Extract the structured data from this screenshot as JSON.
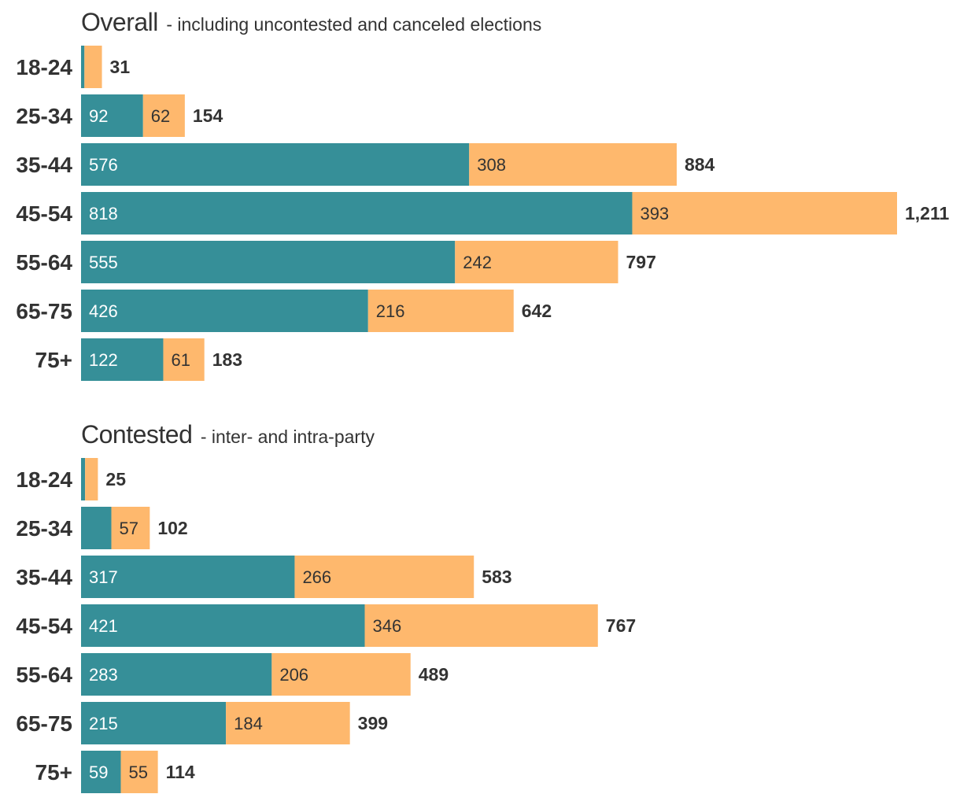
{
  "colors": {
    "series_a": "#368f98",
    "series_b": "#feb86d",
    "label_on_a": "#ffffff",
    "label_on_b": "#333333",
    "text": "#333333"
  },
  "chart_data": [
    {
      "type": "bar",
      "orientation": "horizontal",
      "stacked": true,
      "title": "Overall",
      "subtitle": "- including uncontested and canceled elections",
      "categories": [
        "18-24",
        "25-34",
        "35-44",
        "45-54",
        "55-64",
        "65-75",
        "75+"
      ],
      "series": [
        {
          "name": "series_a",
          "values": [
            5,
            92,
            576,
            818,
            555,
            426,
            122
          ],
          "labels": [
            "",
            "92",
            "576",
            "818",
            "555",
            "426",
            "122"
          ]
        },
        {
          "name": "series_b",
          "values": [
            26,
            62,
            308,
            393,
            242,
            216,
            61
          ],
          "labels": [
            "",
            "62",
            "308",
            "393",
            "242",
            "216",
            "61"
          ]
        }
      ],
      "totals": [
        "31",
        "154",
        "884",
        "1,211",
        "797",
        "642",
        "183"
      ],
      "xlim": [
        0,
        1211
      ]
    },
    {
      "type": "bar",
      "orientation": "horizontal",
      "stacked": true,
      "title": "Contested",
      "subtitle": "- inter- and intra-party",
      "categories": [
        "18-24",
        "25-34",
        "35-44",
        "45-54",
        "55-64",
        "65-75",
        "75+"
      ],
      "series": [
        {
          "name": "series_a",
          "values": [
            6,
            45,
            317,
            421,
            283,
            215,
            59
          ],
          "labels": [
            "",
            "",
            "317",
            "421",
            "283",
            "215",
            "59"
          ]
        },
        {
          "name": "series_b",
          "values": [
            19,
            57,
            266,
            346,
            206,
            184,
            55
          ],
          "labels": [
            "",
            "57",
            "266",
            "346",
            "206",
            "184",
            "55"
          ]
        }
      ],
      "totals": [
        "25",
        "102",
        "583",
        "767",
        "489",
        "399",
        "114"
      ],
      "xlim": [
        0,
        1211
      ]
    }
  ]
}
